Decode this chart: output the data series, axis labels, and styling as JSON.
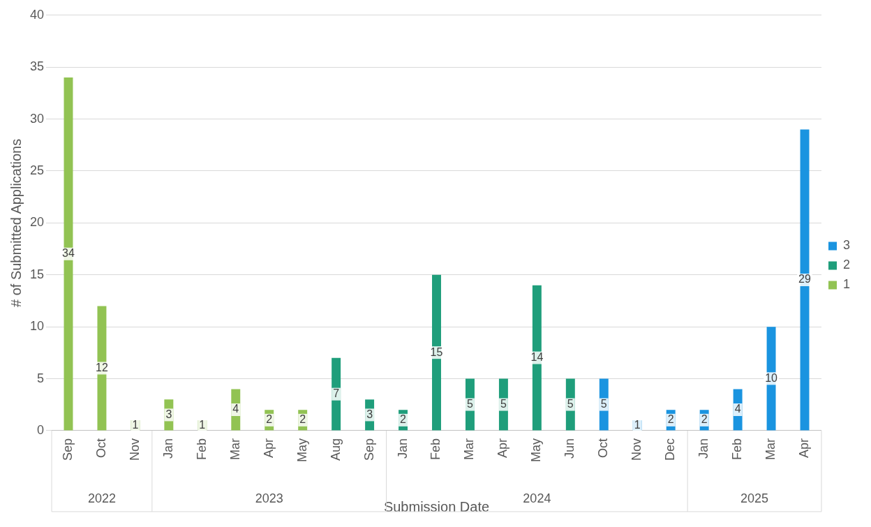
{
  "chart_data": {
    "type": "bar",
    "xlabel": "Submission Date",
    "ylabel": "# of Submitted Applications",
    "categories": [
      "Sep",
      "Oct",
      "Nov",
      "Jan",
      "Feb",
      "Mar",
      "Apr",
      "May",
      "Aug",
      "Sep",
      "Jan",
      "Feb",
      "Mar",
      "Apr",
      "May",
      "Jun",
      "Oct",
      "Nov",
      "Dec",
      "Jan",
      "Feb",
      "Mar",
      "Apr"
    ],
    "series": [
      {
        "name": "1",
        "color": "#92c353",
        "values": [
          34,
          12,
          1,
          3,
          1,
          4,
          2,
          2,
          null,
          null,
          null,
          null,
          null,
          null,
          null,
          null,
          null,
          null,
          null,
          null,
          null,
          null,
          null
        ]
      },
      {
        "name": "2",
        "color": "#1f9e7b",
        "values": [
          null,
          null,
          null,
          null,
          null,
          null,
          null,
          null,
          7,
          3,
          2,
          15,
          5,
          5,
          14,
          5,
          null,
          null,
          null,
          null,
          null,
          null,
          null
        ]
      },
      {
        "name": "3",
        "color": "#1a94e0",
        "values": [
          null,
          null,
          null,
          null,
          null,
          null,
          null,
          null,
          null,
          null,
          null,
          null,
          null,
          null,
          null,
          null,
          5,
          1,
          2,
          2,
          4,
          10,
          29
        ]
      }
    ],
    "stacked": true,
    "ylim": [
      0,
      40
    ],
    "yticks": [
      0,
      5,
      10,
      15,
      20,
      25,
      30,
      35,
      40
    ],
    "grid": "y",
    "legend": "right",
    "data_labels": true,
    "annotations": [
      "2022",
      "2023",
      "2024",
      "2025"
    ]
  }
}
